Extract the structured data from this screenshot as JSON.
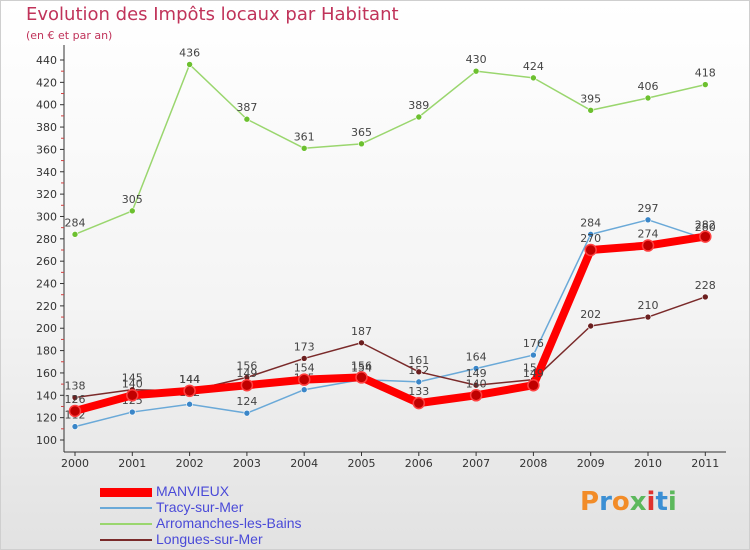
{
  "header": {
    "title": "Evolution des Impôts locaux par Habitant",
    "subtitle": "(en € et par an)"
  },
  "logo": {
    "text": "Proxiti",
    "colors": [
      "#f28c28",
      "#3b8fd4",
      "#f28c28",
      "#5cb85c",
      "#e0322e",
      "#3b8fd4",
      "#5cb85c"
    ]
  },
  "chart_data": {
    "type": "line",
    "x": [
      "2000",
      "2001",
      "2002",
      "2003",
      "2004",
      "2005",
      "2006",
      "2007",
      "2008",
      "2009",
      "2010",
      "2011"
    ],
    "ylim": [
      100,
      440
    ],
    "yticks": [
      100,
      120,
      140,
      160,
      180,
      200,
      220,
      240,
      260,
      280,
      300,
      320,
      340,
      360,
      380,
      400,
      420,
      440
    ],
    "grid": false,
    "legend_position": "bottom-left",
    "series": [
      {
        "name": "MANVIEUX",
        "color": "#ff0000",
        "marker_color": "#c00000",
        "emphasis": true,
        "values": [
          126,
          140,
          144,
          149,
          154,
          156,
          133,
          140,
          149,
          270,
          274,
          282
        ]
      },
      {
        "name": "Tracy-sur-Mer",
        "color": "#6aa9d8",
        "marker_color": "#3a86c8",
        "values": [
          112,
          125,
          132,
          124,
          145,
          154,
          152,
          164,
          176,
          284,
          297,
          280
        ]
      },
      {
        "name": "Arromanches-les-Bains",
        "color": "#9ad66e",
        "marker_color": "#6cc02f",
        "values": [
          284,
          305,
          436,
          387,
          361,
          365,
          389,
          430,
          424,
          395,
          406,
          418
        ]
      },
      {
        "name": "Longues-sur-Mer",
        "color": "#7a2a2a",
        "marker_color": "#6b1f1f",
        "values": [
          138,
          145,
          144,
          156,
          173,
          187,
          161,
          149,
          154,
          202,
          210,
          228
        ]
      }
    ]
  }
}
